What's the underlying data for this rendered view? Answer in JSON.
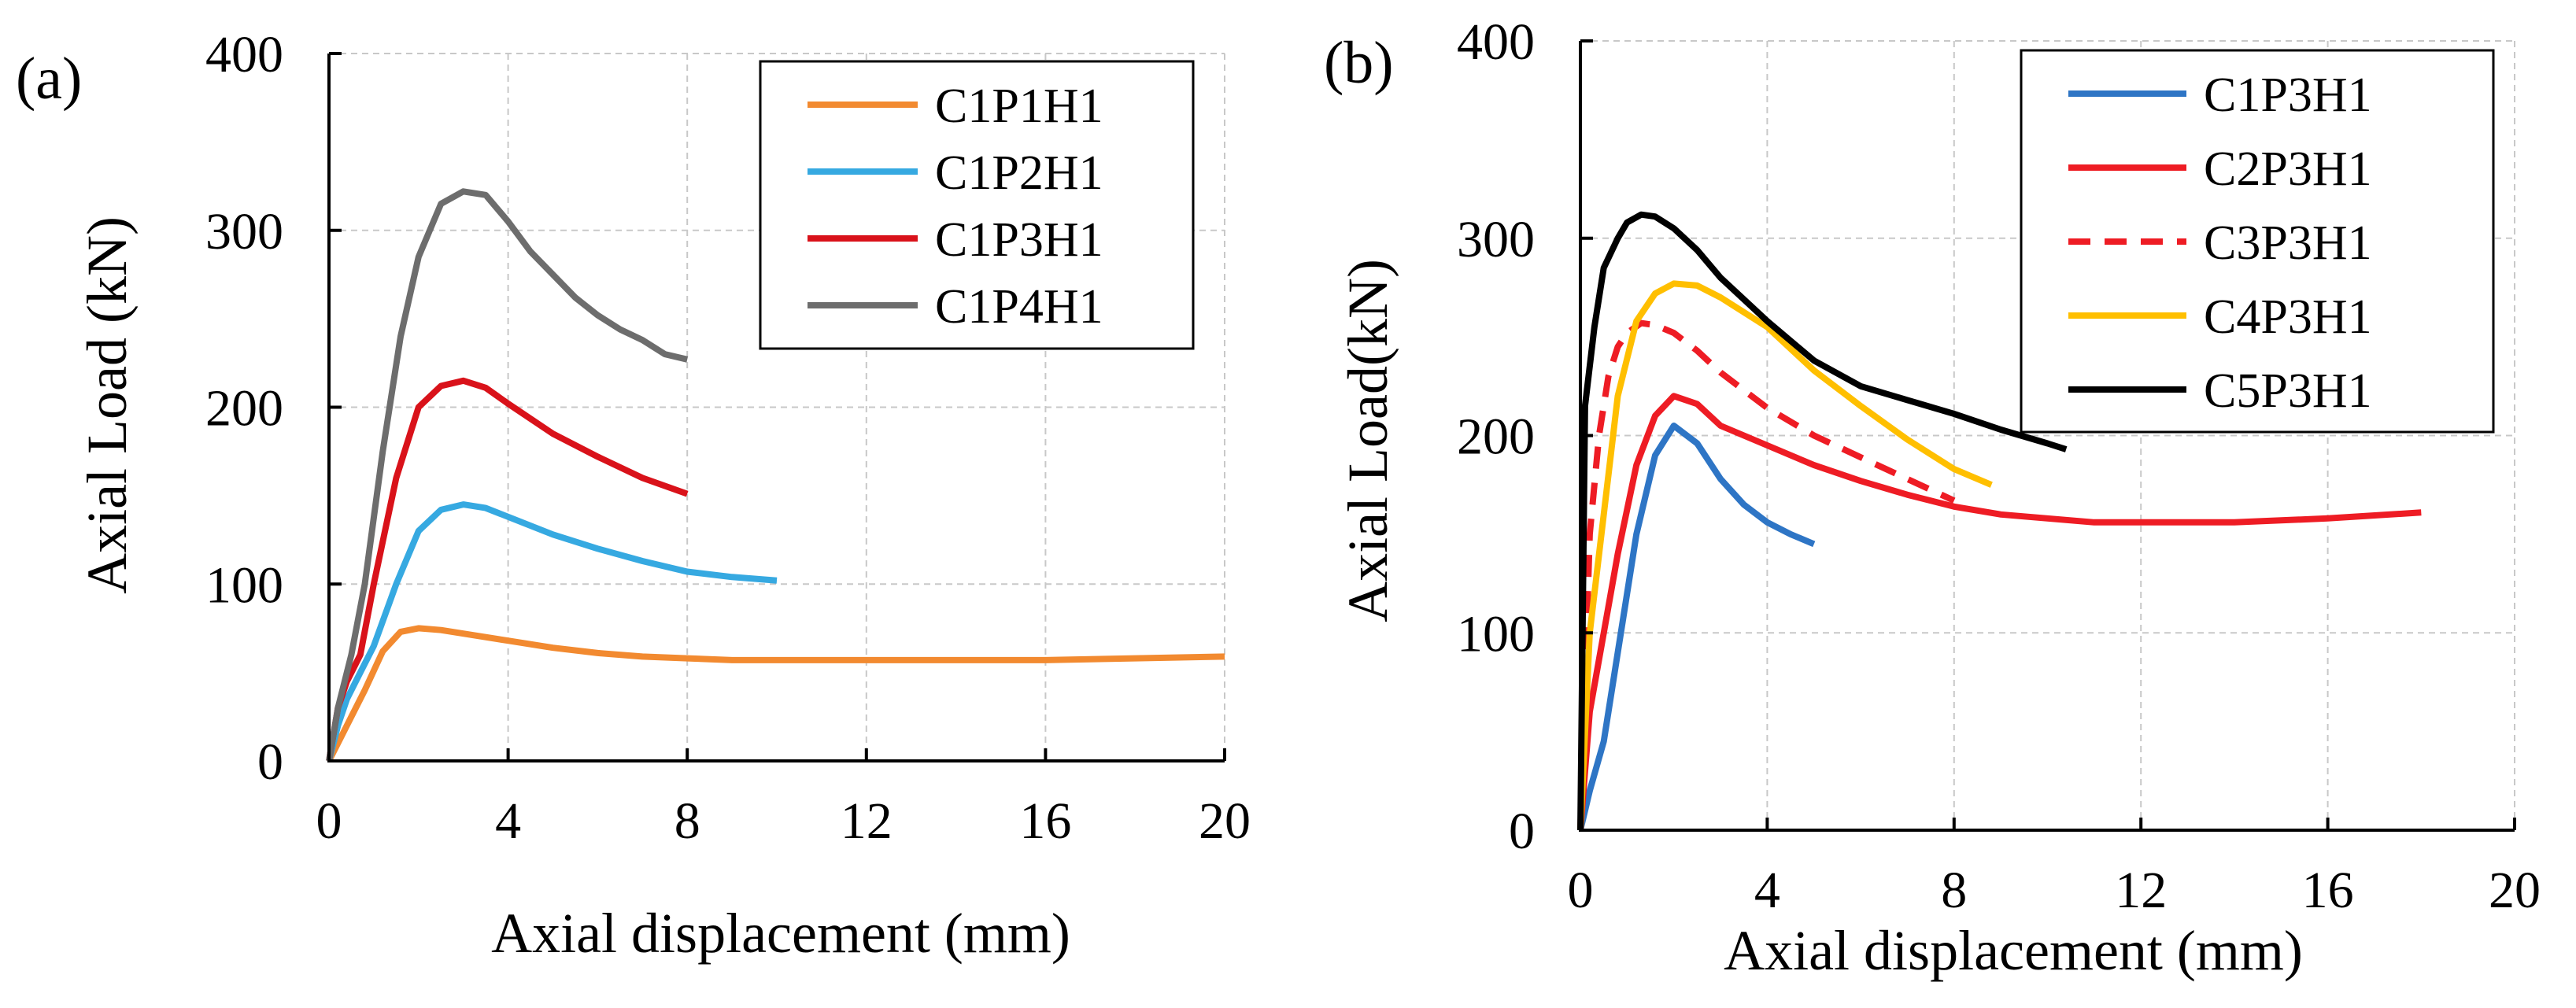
{
  "chart_data": [
    {
      "panel_label": "(a)",
      "type": "line",
      "title": "",
      "xlabel": "Axial displacement (mm)",
      "ylabel": "Axial Load (kN)",
      "xlim": [
        0,
        20
      ],
      "ylim": [
        0,
        400
      ],
      "xticks": [
        0,
        4,
        8,
        12,
        16,
        20
      ],
      "yticks": [
        0,
        100,
        200,
        300,
        400
      ],
      "grid": true,
      "legend_position": "top-right",
      "series": [
        {
          "name": "C1P1H1",
          "color": "#f28a30",
          "dash": "solid",
          "x": [
            0,
            0.2,
            0.5,
            0.8,
            1.2,
            1.6,
            2.0,
            2.5,
            3.0,
            4.0,
            5.0,
            6.0,
            7.0,
            8.0,
            9.0,
            10.0,
            12.0,
            14.0,
            16.0,
            18.0,
            20.0
          ],
          "y": [
            0,
            10,
            25,
            40,
            62,
            73,
            75,
            74,
            72,
            68,
            64,
            61,
            59,
            58,
            57,
            57,
            57,
            57,
            57,
            58,
            59
          ]
        },
        {
          "name": "C1P2H1",
          "color": "#36a9e1",
          "dash": "solid",
          "x": [
            0,
            0.2,
            0.4,
            0.7,
            1.0,
            1.5,
            2.0,
            2.5,
            3.0,
            3.5,
            4.0,
            5.0,
            6.0,
            7.0,
            8.0,
            9.0,
            10.0
          ],
          "y": [
            0,
            20,
            35,
            50,
            65,
            100,
            130,
            142,
            145,
            143,
            138,
            128,
            120,
            113,
            107,
            104,
            102
          ]
        },
        {
          "name": "C1P3H1",
          "color": "#d9121a",
          "dash": "solid",
          "x": [
            0,
            0.2,
            0.4,
            0.7,
            1.0,
            1.5,
            2.0,
            2.5,
            3.0,
            3.5,
            4.0,
            5.0,
            6.0,
            7.0,
            8.0
          ],
          "y": [
            0,
            30,
            45,
            60,
            100,
            160,
            200,
            212,
            215,
            211,
            202,
            185,
            172,
            160,
            151
          ]
        },
        {
          "name": "C1P4H1",
          "color": "#6d6d6d",
          "dash": "solid",
          "x": [
            0,
            0.2,
            0.5,
            0.8,
            1.2,
            1.6,
            2.0,
            2.5,
            3.0,
            3.5,
            4.0,
            4.5,
            5.0,
            5.5,
            6.0,
            6.5,
            7.0,
            7.5,
            8.0
          ],
          "y": [
            0,
            30,
            60,
            100,
            175,
            240,
            285,
            315,
            322,
            320,
            305,
            288,
            275,
            262,
            252,
            244,
            238,
            230,
            227
          ]
        }
      ]
    },
    {
      "panel_label": "(b)",
      "type": "line",
      "title": "",
      "xlabel": "Axial displacement (mm)",
      "ylabel": "Axial Load(kN)",
      "xlim": [
        0,
        20
      ],
      "ylim": [
        0,
        400
      ],
      "xticks": [
        0,
        4,
        8,
        12,
        16,
        20
      ],
      "yticks": [
        0,
        100,
        200,
        300,
        400
      ],
      "grid": true,
      "legend_position": "top-right",
      "series": [
        {
          "name": "C1P3H1",
          "color": "#2e75c5",
          "dash": "solid",
          "x": [
            0,
            0.2,
            0.5,
            0.8,
            1.2,
            1.6,
            2.0,
            2.5,
            3.0,
            3.5,
            4.0,
            4.5,
            5.0
          ],
          "y": [
            0,
            20,
            45,
            90,
            150,
            190,
            205,
            196,
            178,
            165,
            156,
            150,
            145
          ]
        },
        {
          "name": "C2P3H1",
          "color": "#ee1c24",
          "dash": "solid",
          "x": [
            0,
            0.2,
            0.5,
            0.8,
            1.2,
            1.6,
            2.0,
            2.5,
            3.0,
            4.0,
            5.0,
            6.0,
            7.0,
            8.0,
            9.0,
            10.0,
            11.0,
            12.0,
            14.0,
            16.0,
            18.0
          ],
          "y": [
            0,
            60,
            100,
            140,
            185,
            210,
            220,
            216,
            205,
            195,
            185,
            177,
            170,
            164,
            160,
            158,
            156,
            156,
            156,
            158,
            161
          ]
        },
        {
          "name": "C3P3H1",
          "color": "#ee1c24",
          "dash": "dashed",
          "x": [
            0,
            0.2,
            0.4,
            0.6,
            0.8,
            1.0,
            1.3,
            1.6,
            2.0,
            2.5,
            3.0,
            4.0,
            5.0,
            6.0,
            7.0,
            8.0
          ],
          "y": [
            0,
            150,
            200,
            230,
            245,
            252,
            257,
            256,
            252,
            243,
            232,
            214,
            200,
            189,
            178,
            167
          ]
        },
        {
          "name": "C4P3H1",
          "color": "#ffbf00",
          "dash": "solid",
          "x": [
            0,
            0.2,
            0.5,
            0.8,
            1.2,
            1.6,
            2.0,
            2.5,
            3.0,
            4.0,
            5.0,
            6.0,
            7.0,
            8.0,
            8.8
          ],
          "y": [
            0,
            100,
            160,
            220,
            258,
            272,
            277,
            276,
            270,
            255,
            233,
            215,
            198,
            183,
            175
          ]
        },
        {
          "name": "C5P3H1",
          "color": "#000000",
          "dash": "solid",
          "x": [
            0,
            0.1,
            0.3,
            0.5,
            0.8,
            1.0,
            1.3,
            1.6,
            2.0,
            2.5,
            3.0,
            4.0,
            5.0,
            6.0,
            7.0,
            8.0,
            9.0,
            10.0,
            10.4
          ],
          "y": [
            0,
            215,
            255,
            285,
            300,
            308,
            312,
            311,
            305,
            294,
            280,
            258,
            238,
            225,
            218,
            211,
            203,
            196,
            193
          ]
        }
      ]
    }
  ]
}
